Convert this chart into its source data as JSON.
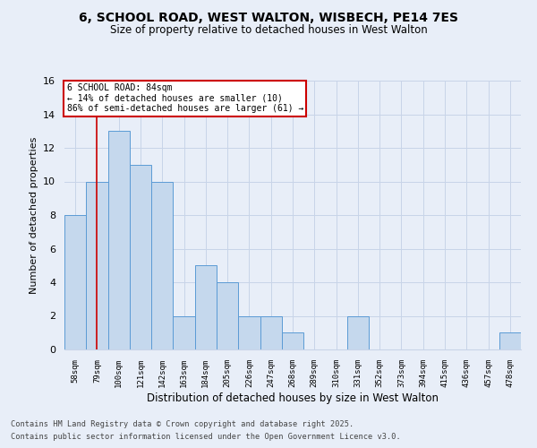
{
  "title1": "6, SCHOOL ROAD, WEST WALTON, WISBECH, PE14 7ES",
  "title2": "Size of property relative to detached houses in West Walton",
  "xlabel": "Distribution of detached houses by size in West Walton",
  "ylabel": "Number of detached properties",
  "footer1": "Contains HM Land Registry data © Crown copyright and database right 2025.",
  "footer2": "Contains public sector information licensed under the Open Government Licence v3.0.",
  "categories": [
    "58sqm",
    "79sqm",
    "100sqm",
    "121sqm",
    "142sqm",
    "163sqm",
    "184sqm",
    "205sqm",
    "226sqm",
    "247sqm",
    "268sqm",
    "289sqm",
    "310sqm",
    "331sqm",
    "352sqm",
    "373sqm",
    "394sqm",
    "415sqm",
    "436sqm",
    "457sqm",
    "478sqm"
  ],
  "values": [
    8,
    10,
    13,
    11,
    10,
    2,
    5,
    4,
    2,
    2,
    1,
    0,
    0,
    2,
    0,
    0,
    0,
    0,
    0,
    0,
    1
  ],
  "bar_color": "#c5d8ed",
  "bar_edge_color": "#5b9bd5",
  "grid_color": "#c8d4e8",
  "background_color": "#e8eef8",
  "redline_x": 1.0,
  "annotation_text": "6 SCHOOL ROAD: 84sqm\n← 14% of detached houses are smaller (10)\n86% of semi-detached houses are larger (61) →",
  "annotation_box_color": "#ffffff",
  "annotation_box_edge": "#cc0000",
  "ylim": [
    0,
    16
  ],
  "yticks": [
    0,
    2,
    4,
    6,
    8,
    10,
    12,
    14,
    16
  ]
}
